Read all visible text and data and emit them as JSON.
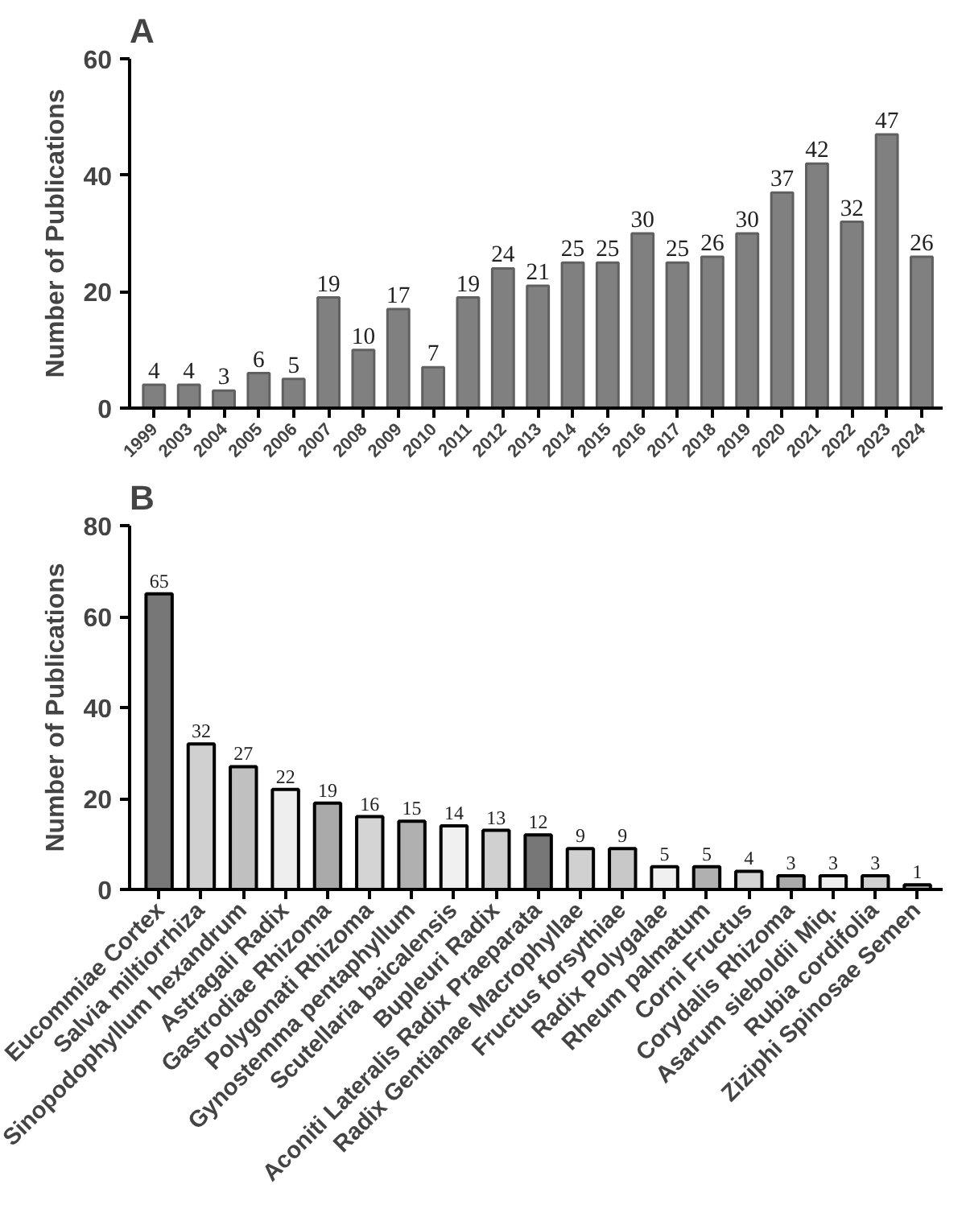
{
  "chart_data": [
    {
      "type": "bar",
      "title": "A",
      "ylabel": "Number of Publications",
      "categories": [
        "1999",
        "2003",
        "2004",
        "2005",
        "2006",
        "2007",
        "2008",
        "2009",
        "2010",
        "2011",
        "2012",
        "2013",
        "2014",
        "2015",
        "2016",
        "2017",
        "2018",
        "2019",
        "2020",
        "2021",
        "2022",
        "2023",
        "2024"
      ],
      "values": [
        4,
        4,
        3,
        6,
        5,
        19,
        10,
        17,
        7,
        19,
        24,
        21,
        25,
        25,
        30,
        25,
        26,
        30,
        37,
        42,
        32,
        47,
        26
      ],
      "color": "#808080",
      "ylim": [
        0,
        60
      ],
      "yticks": [
        0,
        20,
        40,
        60
      ],
      "data_labels": true,
      "grid": false
    },
    {
      "type": "bar",
      "title": "B",
      "ylabel": "Number of Publications",
      "categories": [
        "Eucommiae Cortex",
        "Salvia miltiorrhiza",
        "Sinopodophyllum hexandrum",
        "Astragali Radix",
        "Gastrodiae Rhizoma",
        "Polygonati Rhizoma",
        "Gynostemma pentaphyllum",
        "Scutellaria baicalensis",
        "Bupleuri Radix",
        "Aconiti Lateralis Radix Praeparata",
        "Radix Gentianae Macrophyllae",
        "Fructus forsythiae",
        "Radix Polygalae",
        "Rheum palmatum",
        "Corni Fructus",
        "Corydalis Rhizoma",
        "Asarum sieboldii Miq.",
        "Rubia cordifolia",
        "Ziziphi Spinosae Semen"
      ],
      "values": [
        65,
        32,
        27,
        22,
        19,
        16,
        15,
        14,
        13,
        12,
        9,
        9,
        5,
        5,
        4,
        3,
        3,
        3,
        1
      ],
      "colors": [
        "#777777",
        "#d0d0d0",
        "#c0c0c0",
        "#eeeeee",
        "#aaaaaa",
        "#d4d4d4",
        "#b0b0b0",
        "#f0f0f0",
        "#d0d0d0",
        "#777777",
        "#d0d0d0",
        "#c8c8c8",
        "#f0f0f0",
        "#b0b0b0",
        "#d4d4d4",
        "#aaaaaa",
        "#eeeeee",
        "#d0d0d0",
        "#b0b0b0"
      ],
      "ylim": [
        0,
        80
      ],
      "yticks": [
        0,
        20,
        40,
        60,
        80
      ],
      "data_labels": true,
      "grid": false
    }
  ]
}
